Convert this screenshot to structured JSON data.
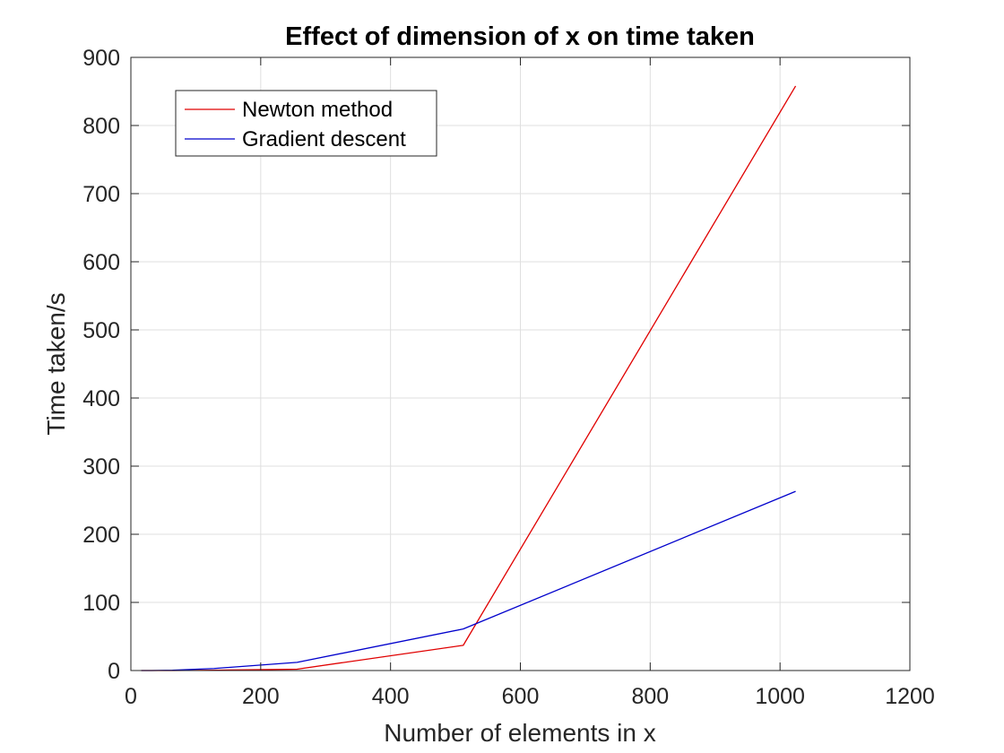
{
  "chart_data": {
    "type": "line",
    "title": "Effect of dimension of x on time taken",
    "xlabel": "Number of elements in x",
    "ylabel": "Time taken/s",
    "xlim": [
      0,
      1200
    ],
    "ylim": [
      0,
      900
    ],
    "xticks": [
      0,
      200,
      400,
      600,
      800,
      1000,
      1200
    ],
    "yticks": [
      0,
      100,
      200,
      300,
      400,
      500,
      600,
      700,
      800,
      900
    ],
    "grid": true,
    "legend_position": "top-left",
    "series": [
      {
        "name": "Newton method",
        "color": "#e00000",
        "x": [
          16,
          32,
          64,
          128,
          256,
          512,
          1024
        ],
        "y": [
          0,
          0,
          0,
          0.5,
          2,
          37,
          858
        ]
      },
      {
        "name": "Gradient descent",
        "color": "#0000cc",
        "x": [
          16,
          32,
          64,
          128,
          256,
          512,
          1024
        ],
        "y": [
          0,
          0,
          0.5,
          3,
          12,
          61,
          263
        ]
      }
    ]
  }
}
